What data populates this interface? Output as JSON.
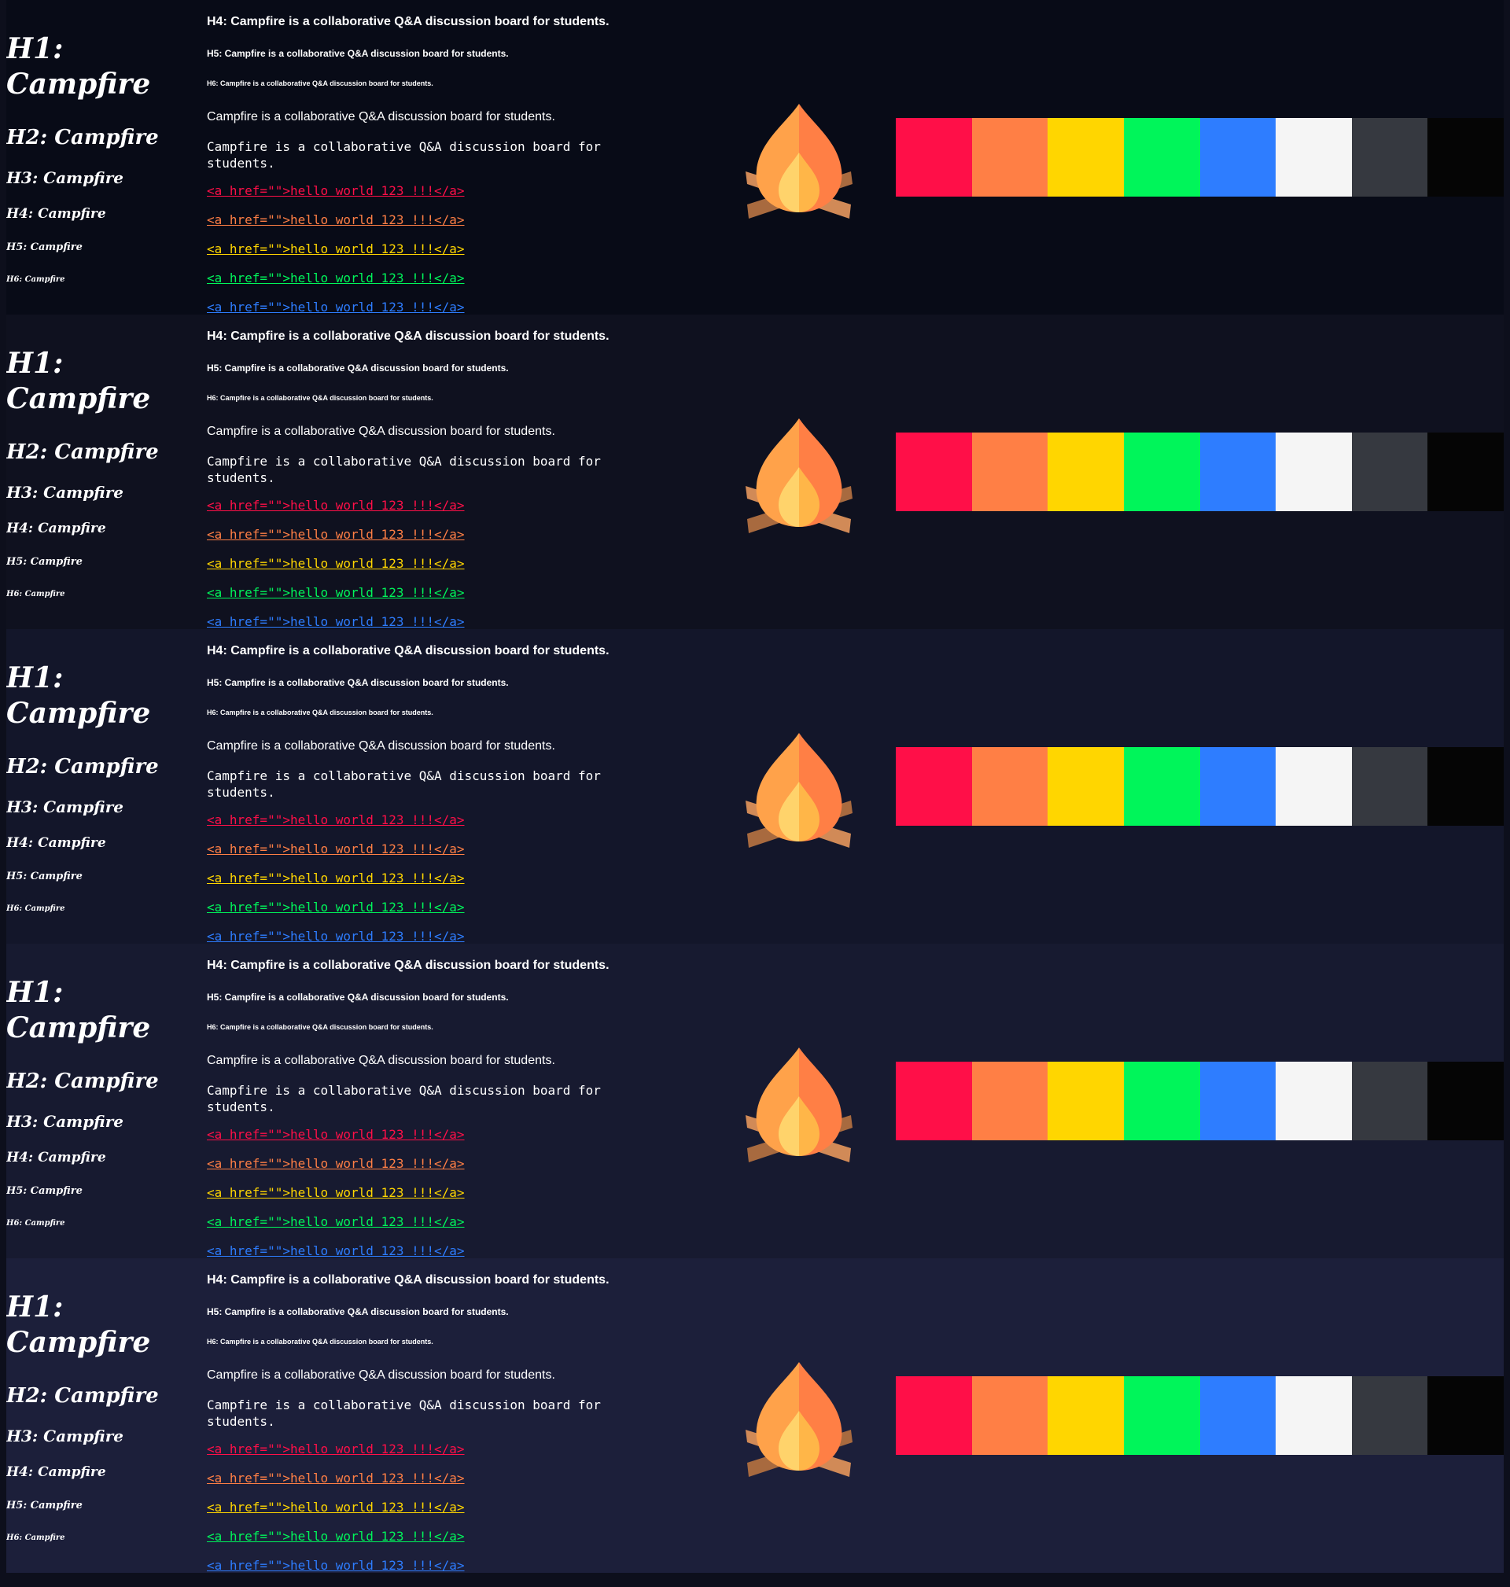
{
  "panels": [
    {
      "background": "#080b17",
      "headings": {
        "h1": "H1: Campfire",
        "h2": "H2: Campfire",
        "h3": "H3: Campfire",
        "h4": "H4: Campfire",
        "h5": "H5: Campfire",
        "h6": "H6: Campfire"
      },
      "texts": {
        "h4": "H4: Campfire is a collaborative Q&A discussion board for students.",
        "h5": "H5: Campfire is a collaborative Q&A discussion board for students.",
        "h6": "H6: Campfire is a collaborative Q&A discussion board for students.",
        "paragraph": "Campfire is a collaborative Q&A discussion board for students.",
        "mono": "Campfire is a collaborative Q&A discussion board for students."
      },
      "links": [
        "<a href=\"\">hello world 123 !!!</a>",
        "<a href=\"\">hello world 123 !!!</a>",
        "<a href=\"\">hello world 123 !!!</a>",
        "<a href=\"\">hello world 123 !!!</a>",
        "<a href=\"\">hello world 123 !!!</a>"
      ]
    },
    {
      "background": "#0f111f",
      "headings": {
        "h1": "H1: Campfire",
        "h2": "H2: Campfire",
        "h3": "H3: Campfire",
        "h4": "H4: Campfire",
        "h5": "H5: Campfire",
        "h6": "H6: Campfire"
      },
      "texts": {
        "h4": "H4: Campfire is a collaborative Q&A discussion board for students.",
        "h5": "H5: Campfire is a collaborative Q&A discussion board for students.",
        "h6": "H6: Campfire is a collaborative Q&A discussion board for students.",
        "paragraph": "Campfire is a collaborative Q&A discussion board for students.",
        "mono": "Campfire is a collaborative Q&A discussion board for students."
      },
      "links": [
        "<a href=\"\">hello world 123 !!!</a>",
        "<a href=\"\">hello world 123 !!!</a>",
        "<a href=\"\">hello world 123 !!!</a>",
        "<a href=\"\">hello world 123 !!!</a>",
        "<a href=\"\">hello world 123 !!!</a>"
      ]
    },
    {
      "background": "#13162a",
      "headings": {
        "h1": "H1: Campfire",
        "h2": "H2: Campfire",
        "h3": "H3: Campfire",
        "h4": "H4: Campfire",
        "h5": "H5: Campfire",
        "h6": "H6: Campfire"
      },
      "texts": {
        "h4": "H4: Campfire is a collaborative Q&A discussion board for students.",
        "h5": "H5: Campfire is a collaborative Q&A discussion board for students.",
        "h6": "H6: Campfire is a collaborative Q&A discussion board for students.",
        "paragraph": "Campfire is a collaborative Q&A discussion board for students.",
        "mono": "Campfire is a collaborative Q&A discussion board for students."
      },
      "links": [
        "<a href=\"\">hello world 123 !!!</a>",
        "<a href=\"\">hello world 123 !!!</a>",
        "<a href=\"\">hello world 123 !!!</a>",
        "<a href=\"\">hello world 123 !!!</a>",
        "<a href=\"\">hello world 123 !!!</a>"
      ]
    },
    {
      "background": "#171a30",
      "headings": {
        "h1": "H1: Campfire",
        "h2": "H2: Campfire",
        "h3": "H3: Campfire",
        "h4": "H4: Campfire",
        "h5": "H5: Campfire",
        "h6": "H6: Campfire"
      },
      "texts": {
        "h4": "H4: Campfire is a collaborative Q&A discussion board for students.",
        "h5": "H5: Campfire is a collaborative Q&A discussion board for students.",
        "h6": "H6: Campfire is a collaborative Q&A discussion board for students.",
        "paragraph": "Campfire is a collaborative Q&A discussion board for students.",
        "mono": "Campfire is a collaborative Q&A discussion board for students."
      },
      "links": [
        "<a href=\"\">hello world 123 !!!</a>",
        "<a href=\"\">hello world 123 !!!</a>",
        "<a href=\"\">hello world 123 !!!</a>",
        "<a href=\"\">hello world 123 !!!</a>",
        "<a href=\"\">hello world 123 !!!</a>"
      ]
    },
    {
      "background": "#1c1f3a",
      "headings": {
        "h1": "H1: Campfire",
        "h2": "H2: Campfire",
        "h3": "H3: Campfire",
        "h4": "H4: Campfire",
        "h5": "H5: Campfire",
        "h6": "H6: Campfire"
      },
      "texts": {
        "h4": "H4: Campfire is a collaborative Q&A discussion board for students.",
        "h5": "H5: Campfire is a collaborative Q&A discussion board for students.",
        "h6": "H6: Campfire is a collaborative Q&A discussion board for students.",
        "paragraph": "Campfire is a collaborative Q&A discussion board for students.",
        "mono": "Campfire is a collaborative Q&A discussion board for students."
      },
      "links": [
        "<a href=\"\">hello world 123 !!!</a>",
        "<a href=\"\">hello world 123 !!!</a>",
        "<a href=\"\">hello world 123 !!!</a>",
        "<a href=\"\">hello world 123 !!!</a>",
        "<a href=\"\">hello world 123 !!!</a>"
      ]
    }
  ],
  "link_colors": [
    "#ff0f48",
    "#ff7f45",
    "#ffd600",
    "#00f55a",
    "#2e7dff"
  ],
  "icon": "campfire-icon",
  "palette": [
    "#ff0f48",
    "#ff7f45",
    "#ffd600",
    "#00f55a",
    "#2e7dff",
    "#f5f5f5",
    "#363940",
    "#050505"
  ],
  "flame_colors": {
    "outer_left": "#ffa24a",
    "outer_right": "#ff7f45",
    "inner_left": "#ffd36b",
    "inner_right": "#ffb648",
    "log_light": "#d18a57",
    "log_dark": "#a86a3f"
  }
}
